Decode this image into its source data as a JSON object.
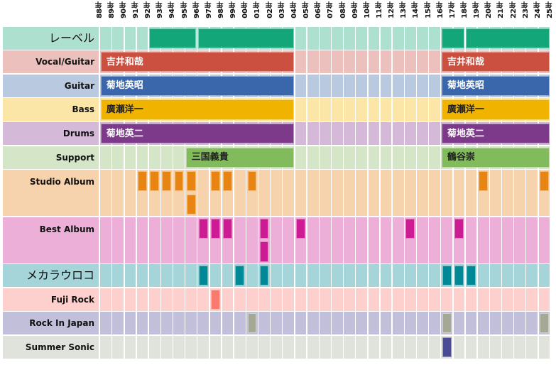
{
  "chart_data": {
    "type": "heatmap",
    "title": "",
    "x_axis": {
      "ticks": [
        "88年",
        "89年",
        "90年",
        "91年",
        "92年",
        "93年",
        "94年",
        "95年",
        "96年",
        "97年",
        "98年",
        "99年",
        "00年",
        "01年",
        "02年",
        "03年",
        "04年",
        "05年",
        "06年",
        "07年",
        "08年",
        "09年",
        "10年",
        "11年",
        "12年",
        "13年",
        "14年",
        "15年",
        "16年",
        "17年",
        "18年",
        "19年",
        "20年",
        "21年",
        "22年",
        "23年",
        "24年",
        "25年"
      ],
      "years": [
        1988,
        1989,
        1990,
        1991,
        1992,
        1993,
        1994,
        1995,
        1996,
        1997,
        1998,
        1999,
        2000,
        2001,
        2002,
        2003,
        2004,
        2005,
        2006,
        2007,
        2008,
        2009,
        2010,
        2011,
        2012,
        2013,
        2014,
        2015,
        2016,
        2017,
        2018,
        2019,
        2020,
        2021,
        2022,
        2023,
        2024,
        2025
      ]
    },
    "rows": [
      {
        "label": "レーベル",
        "jp": true,
        "sub_rows": 1,
        "bg": "#aee0d0",
        "mark": "#13a678",
        "spans": [
          {
            "start": 1992,
            "end": 1996,
            "text": ""
          },
          {
            "start": 1996,
            "end": 2004,
            "text": ""
          },
          {
            "start": 2016,
            "end": 2018,
            "text": ""
          },
          {
            "start": 2018,
            "end": 2025,
            "text": ""
          }
        ]
      },
      {
        "label": "Vocal/Guitar",
        "sub_rows": 1,
        "bg": "#ecc1bd",
        "mark": "#cc5040",
        "text_color": "#ffffff",
        "spans": [
          {
            "start": 1988,
            "end": 2004,
            "text": "吉井和哉"
          },
          {
            "start": 2016,
            "end": 2025,
            "text": "吉井和哉"
          }
        ]
      },
      {
        "label": "Guitar",
        "sub_rows": 1,
        "bg": "#b8c9e0",
        "mark": "#3a67ab",
        "text_color": "#ffffff",
        "spans": [
          {
            "start": 1988,
            "end": 2004,
            "text": "菊地英昭"
          },
          {
            "start": 2016,
            "end": 2025,
            "text": "菊地英昭"
          }
        ]
      },
      {
        "label": "Bass",
        "sub_rows": 1,
        "bg": "#fbe5a7",
        "mark": "#f0b400",
        "text_color": "#222222",
        "spans": [
          {
            "start": 1988,
            "end": 2004,
            "text": "廣瀬洋一"
          },
          {
            "start": 2016,
            "end": 2025,
            "text": "廣瀬洋一"
          }
        ]
      },
      {
        "label": "Drums",
        "sub_rows": 1,
        "bg": "#d4bad8",
        "mark": "#7d3a8a",
        "text_color": "#ffffff",
        "spans": [
          {
            "start": 1988,
            "end": 2004,
            "text": "菊地英二"
          },
          {
            "start": 2016,
            "end": 2025,
            "text": "菊地英二"
          }
        ]
      },
      {
        "label": "Support",
        "sub_rows": 1,
        "bg": "#d4e6c7",
        "mark": "#82bb5c",
        "text_color": "#222222",
        "spans": [
          {
            "start": 1995,
            "end": 2004,
            "text": "三国義貴"
          },
          {
            "start": 2016,
            "end": 2025,
            "text": "鶴谷崇"
          }
        ]
      },
      {
        "label": "Studio Album",
        "sub_rows": 2,
        "bg": "#f6d3ac",
        "mark": "#e78412",
        "events": [
          {
            "year": 1991,
            "sub": 0
          },
          {
            "year": 1992,
            "sub": 0
          },
          {
            "year": 1993,
            "sub": 0
          },
          {
            "year": 1994,
            "sub": 0
          },
          {
            "year": 1995,
            "sub": 0
          },
          {
            "year": 1995,
            "sub": 1
          },
          {
            "year": 1997,
            "sub": 0
          },
          {
            "year": 1998,
            "sub": 0
          },
          {
            "year": 2000,
            "sub": 0
          },
          {
            "year": 2019,
            "sub": 0
          },
          {
            "year": 2024,
            "sub": 0
          }
        ]
      },
      {
        "label": "Best Album",
        "sub_rows": 2,
        "bg": "#ecafd7",
        "mark": "#cd1b93",
        "events": [
          {
            "year": 1996,
            "sub": 0
          },
          {
            "year": 1997,
            "sub": 0
          },
          {
            "year": 1998,
            "sub": 0
          },
          {
            "year": 2001,
            "sub": 0
          },
          {
            "year": 2001,
            "sub": 1
          },
          {
            "year": 2004,
            "sub": 0
          },
          {
            "year": 2013,
            "sub": 0
          },
          {
            "year": 2017,
            "sub": 0
          }
        ]
      },
      {
        "label": "メカラウロコ",
        "jp": true,
        "sub_rows": 1,
        "bg": "#a6d5d9",
        "mark": "#008896",
        "events": [
          {
            "year": 1996,
            "sub": 0
          },
          {
            "year": 1999,
            "sub": 0
          },
          {
            "year": 2001,
            "sub": 0
          },
          {
            "year": 2016,
            "sub": 0
          },
          {
            "year": 2017,
            "sub": 0
          },
          {
            "year": 2018,
            "sub": 0
          }
        ]
      },
      {
        "label": "Fuji Rock",
        "sub_rows": 1,
        "bg": "#fdd0cd",
        "mark": "#fb7a6e",
        "events": [
          {
            "year": 1997,
            "sub": 0
          }
        ]
      },
      {
        "label": "Rock In Japan",
        "sub_rows": 1,
        "bg": "#c1bfd9",
        "mark": "#a4a895",
        "events": [
          {
            "year": 2000,
            "sub": 0
          },
          {
            "year": 2016,
            "sub": 0
          },
          {
            "year": 2024,
            "sub": 0
          }
        ]
      },
      {
        "label": "Summer Sonic",
        "sub_rows": 1,
        "bg": "#e0e2dc",
        "mark": "#4b4b93",
        "events": [
          {
            "year": 2016,
            "sub": 0
          }
        ]
      }
    ],
    "grid": true,
    "legend": "none"
  }
}
